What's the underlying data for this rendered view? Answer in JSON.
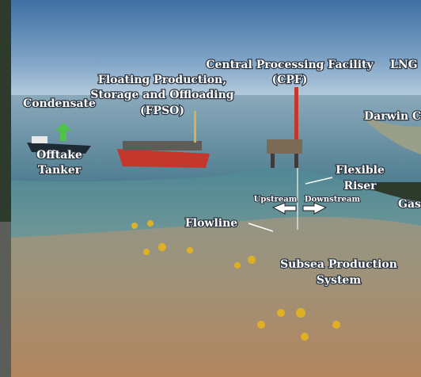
{
  "labels": {
    "condensate": "Condensate",
    "offtake_tanker": [
      "Offtake",
      "Tanker"
    ],
    "fpso": [
      "Floating Production,",
      "Storage and Offloading",
      "(FPSO)"
    ],
    "cpf": [
      "Central Processing Facility",
      "(CPF)"
    ],
    "lng": "LNG",
    "darwin": "Darwin C",
    "flexible_riser": [
      "Flexible",
      "Riser"
    ],
    "upstream": "Upstream",
    "downstream": "Downstream",
    "gas": "Gas",
    "flowline": "Flowline",
    "subsea": [
      "Subsea Production",
      "System"
    ]
  }
}
